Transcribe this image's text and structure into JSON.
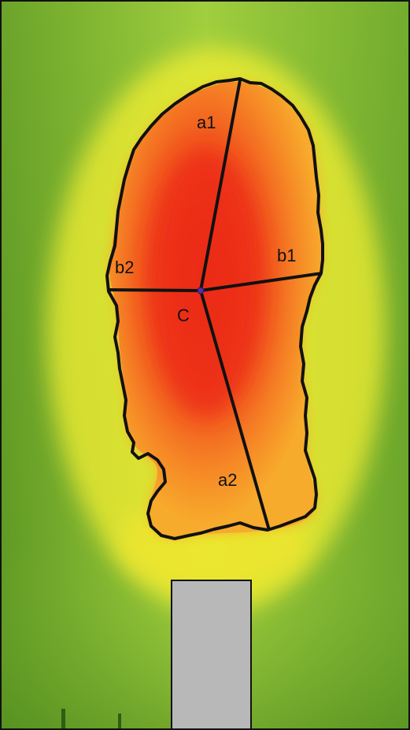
{
  "labels": {
    "a1": "a1",
    "a2": "a2",
    "b1": "b1",
    "b2": "b2",
    "center": "C"
  },
  "colors": {
    "background_outer": "#6ea52a",
    "background_inner": "#9ccd3c",
    "halo_yellow": "#f6f22e",
    "region_orange": "#f7a12a",
    "core_red": "#ee3218",
    "contour": "#111111",
    "block_fill": "#b8b8b8",
    "center_dot": "#5a2ca0"
  }
}
